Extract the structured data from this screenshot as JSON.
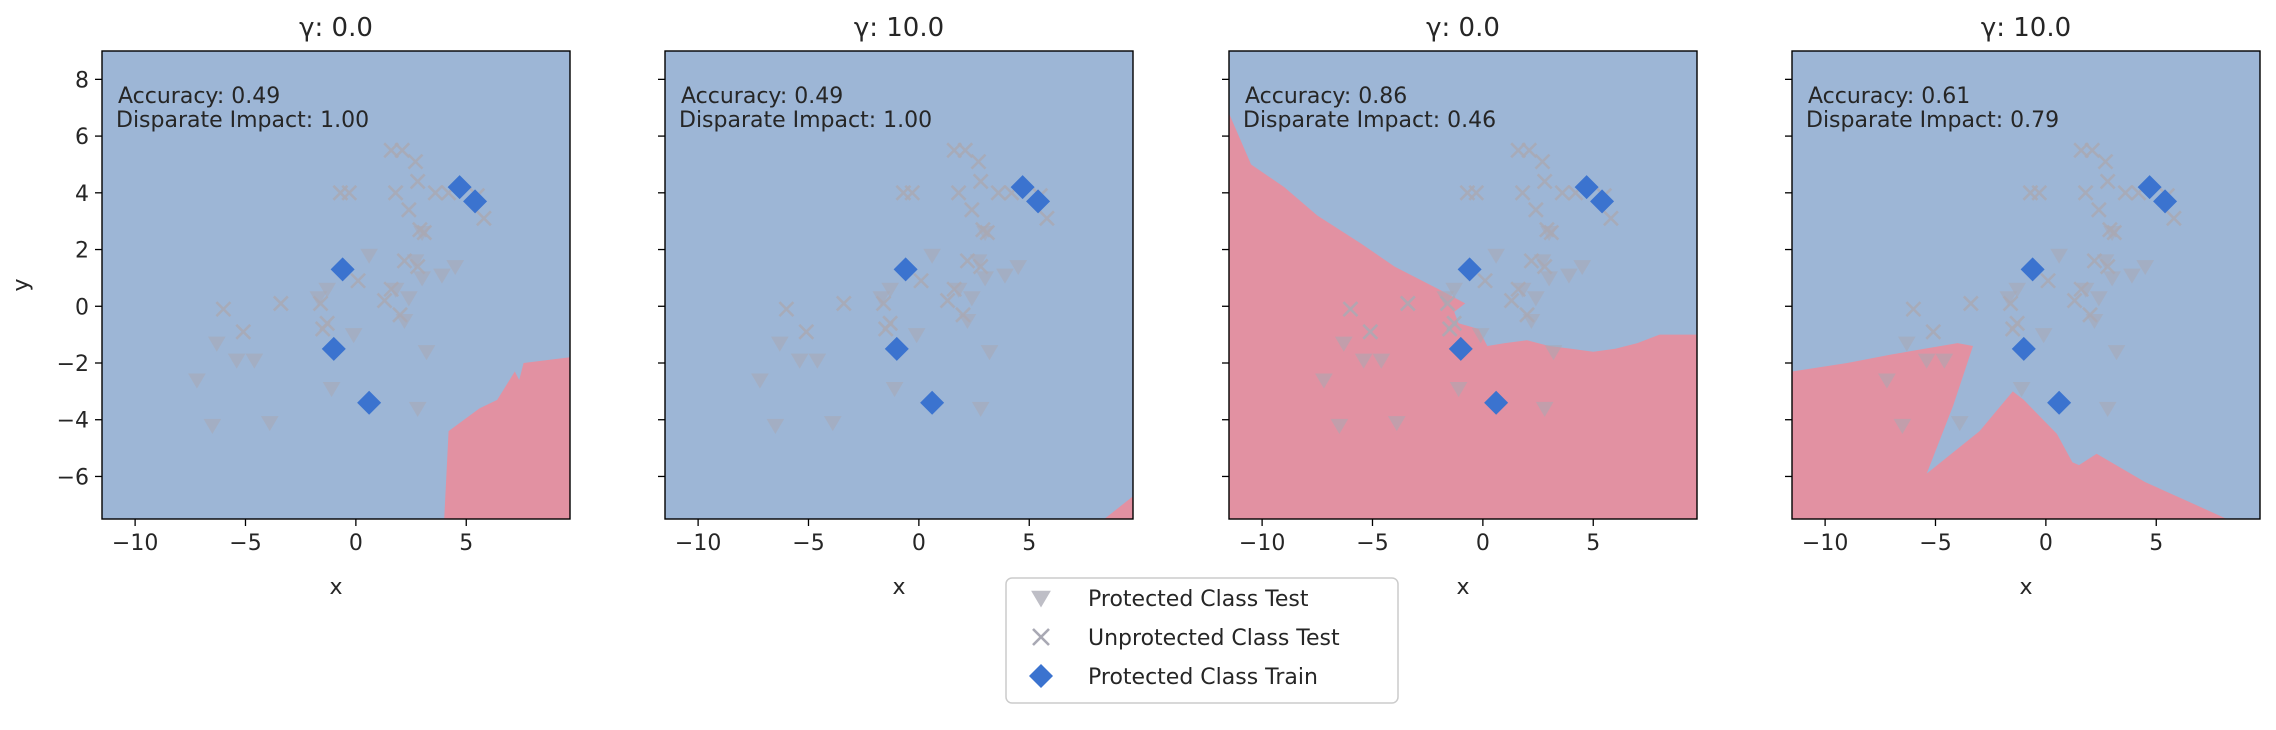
{
  "colors": {
    "region_blue": "#9db6d6",
    "region_red": "#e291a2",
    "train_diamond": "#3b73cf",
    "test_grey": "#a9a9b4",
    "red_triangle": "#d6697f",
    "frame": "#000000"
  },
  "legend": {
    "placement": "bottom-center",
    "entries": [
      {
        "label": "Protected Class Test",
        "marker": "triangle-down"
      },
      {
        "label": "Unprotected Class Test",
        "marker": "x"
      },
      {
        "label": "Protected Class Train",
        "marker": "diamond"
      }
    ]
  },
  "data_points": {
    "protected_train": [
      [
        4.7,
        4.2
      ],
      [
        5.4,
        3.7
      ],
      [
        -0.6,
        1.3
      ],
      [
        -1.0,
        -1.5
      ],
      [
        0.6,
        -3.4
      ]
    ],
    "unprotected_test": [
      [
        -6.0,
        -0.1
      ],
      [
        -5.1,
        -0.9
      ],
      [
        -3.4,
        0.1
      ],
      [
        -1.6,
        0.1
      ],
      [
        -1.3,
        -0.6
      ],
      [
        -0.7,
        4.0
      ],
      [
        -0.3,
        4.0
      ],
      [
        1.6,
        5.5
      ],
      [
        2.1,
        5.5
      ],
      [
        2.7,
        5.1
      ],
      [
        1.8,
        4.0
      ],
      [
        2.8,
        4.4
      ],
      [
        2.4,
        3.4
      ],
      [
        2.9,
        2.7
      ],
      [
        3.1,
        2.6
      ],
      [
        3.6,
        4.0
      ],
      [
        4.2,
        4.0
      ],
      [
        5.5,
        3.9
      ],
      [
        5.8,
        3.1
      ],
      [
        2.2,
        1.6
      ],
      [
        1.6,
        0.6
      ],
      [
        2.8,
        1.4
      ],
      [
        1.3,
        0.2
      ],
      [
        2.0,
        -0.3
      ],
      [
        0.1,
        0.9
      ],
      [
        -1.5,
        -0.8
      ]
    ],
    "protected_test": [
      [
        -7.2,
        -2.6
      ],
      [
        -6.5,
        -4.2
      ],
      [
        -6.3,
        -1.3
      ],
      [
        -5.4,
        -1.9
      ],
      [
        -4.6,
        -1.9
      ],
      [
        -3.9,
        -4.1
      ],
      [
        -1.7,
        0.3
      ],
      [
        -1.3,
        0.6
      ],
      [
        -1.1,
        -2.9
      ],
      [
        -0.1,
        -1.0
      ],
      [
        0.6,
        1.8
      ],
      [
        1.8,
        0.6
      ],
      [
        2.7,
        1.6
      ],
      [
        3.0,
        1.0
      ],
      [
        2.2,
        -0.5
      ],
      [
        2.4,
        0.3
      ],
      [
        3.2,
        -1.6
      ],
      [
        2.8,
        -3.6
      ],
      [
        3.9,
        1.1
      ],
      [
        4.5,
        1.4
      ],
      [
        3.0,
        2.6
      ]
    ]
  },
  "chart_data": [
    {
      "type": "scatter",
      "title": "γ: 0.0",
      "xlabel": "x",
      "ylabel": "y",
      "xlim": [
        -11.5,
        9.7
      ],
      "ylim": [
        -7.5,
        9.0
      ],
      "xticks": [
        "−10",
        "−5",
        "0",
        "5"
      ],
      "xtick_values": [
        -10,
        -5,
        0,
        5
      ],
      "yticks": [
        "8",
        "6",
        "4",
        "2",
        "0",
        "−2",
        "−4",
        "−6"
      ],
      "ytick_values": [
        8,
        6,
        4,
        2,
        0,
        -2,
        -4,
        -6
      ],
      "accuracy_text": "Accuracy: 0.49",
      "disparate_impact_text": "Disparate Impact: 1.00",
      "red_region": [
        [
          4.0,
          -7.5
        ],
        [
          4.2,
          -4.4
        ],
        [
          5.6,
          -3.6
        ],
        [
          6.4,
          -3.3
        ],
        [
          7.2,
          -2.3
        ],
        [
          7.4,
          -2.6
        ],
        [
          7.6,
          -2.0
        ],
        [
          9.7,
          -1.8
        ],
        [
          9.7,
          -7.5
        ]
      ]
    },
    {
      "type": "scatter",
      "title": "γ: 10.0",
      "xlabel": "x",
      "ylabel": "",
      "xlim": [
        -11.5,
        9.7
      ],
      "ylim": [
        -7.5,
        9.0
      ],
      "xticks": [
        "−10",
        "−5",
        "0",
        "5"
      ],
      "xtick_values": [
        -10,
        -5,
        0,
        5
      ],
      "yticks": [],
      "ytick_values": [],
      "accuracy_text": "Accuracy: 0.49",
      "disparate_impact_text": "Disparate Impact: 1.00",
      "red_region": [
        [
          8.4,
          -7.5
        ],
        [
          9.7,
          -6.7
        ],
        [
          9.7,
          -7.5
        ]
      ]
    },
    {
      "type": "scatter",
      "title": "γ: 0.0",
      "xlabel": "x",
      "ylabel": "",
      "xlim": [
        -11.5,
        9.7
      ],
      "ylim": [
        -7.5,
        9.0
      ],
      "xticks": [
        "−10",
        "−5",
        "0",
        "5"
      ],
      "xtick_values": [
        -10,
        -5,
        0,
        5
      ],
      "yticks": [],
      "ytick_values": [],
      "accuracy_text": "Accuracy: 0.86",
      "disparate_impact_text": "Disparate Impact: 0.46",
      "red_region": [
        [
          -11.5,
          6.8
        ],
        [
          -10.5,
          5.0
        ],
        [
          -9.0,
          4.2
        ],
        [
          -7.5,
          3.2
        ],
        [
          -5.5,
          2.2
        ],
        [
          -4.0,
          1.4
        ],
        [
          -2.0,
          0.6
        ],
        [
          -0.8,
          0.1
        ],
        [
          -1.3,
          -0.2
        ],
        [
          -1.1,
          -0.6
        ],
        [
          -0.2,
          -0.8
        ],
        [
          0.2,
          -1.4
        ],
        [
          1.0,
          -1.3
        ],
        [
          2.0,
          -1.2
        ],
        [
          3.0,
          -1.4
        ],
        [
          4.0,
          -1.5
        ],
        [
          5.0,
          -1.6
        ],
        [
          6.0,
          -1.5
        ],
        [
          7.0,
          -1.3
        ],
        [
          8.0,
          -1.0
        ],
        [
          9.7,
          -1.0
        ],
        [
          9.7,
          -7.5
        ],
        [
          -11.5,
          -7.5
        ]
      ]
    },
    {
      "type": "scatter",
      "title": "γ: 10.0",
      "xlabel": "x",
      "ylabel": "",
      "xlim": [
        -11.5,
        9.7
      ],
      "ylim": [
        -7.5,
        9.0
      ],
      "xticks": [
        "−10",
        "−5",
        "0",
        "5"
      ],
      "xtick_values": [
        -10,
        -5,
        0,
        5
      ],
      "yticks": [],
      "ytick_values": [],
      "accuracy_text": "Accuracy: 0.61",
      "disparate_impact_text": "Disparate Impact: 0.79",
      "red_region": [
        [
          -11.5,
          -2.3
        ],
        [
          -9.0,
          -2.0
        ],
        [
          -7.0,
          -1.7
        ],
        [
          -5.5,
          -1.5
        ],
        [
          -4.0,
          -1.3
        ],
        [
          -3.3,
          -1.4
        ],
        [
          -4.2,
          -3.5
        ],
        [
          -5.4,
          -5.9
        ],
        [
          -3.0,
          -4.4
        ],
        [
          -1.5,
          -3.0
        ],
        [
          -1.0,
          -3.3
        ],
        [
          0.5,
          -4.5
        ],
        [
          1.2,
          -5.5
        ],
        [
          1.5,
          -5.6
        ],
        [
          2.3,
          -5.2
        ],
        [
          4.5,
          -6.2
        ],
        [
          6.5,
          -6.9
        ],
        [
          8.2,
          -7.5
        ],
        [
          -11.5,
          -7.5
        ]
      ]
    }
  ]
}
